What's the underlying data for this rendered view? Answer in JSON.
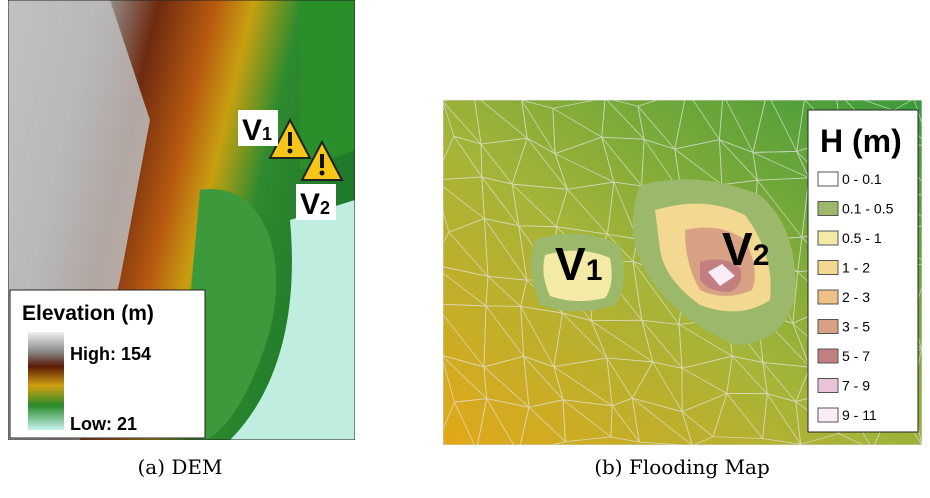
{
  "panels": [
    {
      "caption": "(a) DEM",
      "legend": {
        "title": "Elevation (m)",
        "high": "High: 154",
        "low": "Low: 21"
      },
      "markers": [
        {
          "letter": "V",
          "sub": "1"
        },
        {
          "letter": "V",
          "sub": "2"
        }
      ]
    },
    {
      "caption": "(b) Flooding Map",
      "legend": {
        "title": "H (m)",
        "entries": [
          {
            "label": "0 - 0.1",
            "color": "#ffffff"
          },
          {
            "label": "0.1 - 0.5",
            "color": "#9cb86a"
          },
          {
            "label": "0.5 - 1",
            "color": "#f3eaa6"
          },
          {
            "label": "1 - 2",
            "color": "#f2d891"
          },
          {
            "label": "2 - 3",
            "color": "#eebf86"
          },
          {
            "label": "3 - 5",
            "color": "#d9a184"
          },
          {
            "label": "5 - 7",
            "color": "#c27f7f"
          },
          {
            "label": "7 - 9",
            "color": "#e8c4d8"
          },
          {
            "label": "9 - 11",
            "color": "#fbecf6"
          }
        ]
      },
      "markers": [
        {
          "letter": "V",
          "sub": "1"
        },
        {
          "letter": "V",
          "sub": "2"
        }
      ]
    }
  ]
}
